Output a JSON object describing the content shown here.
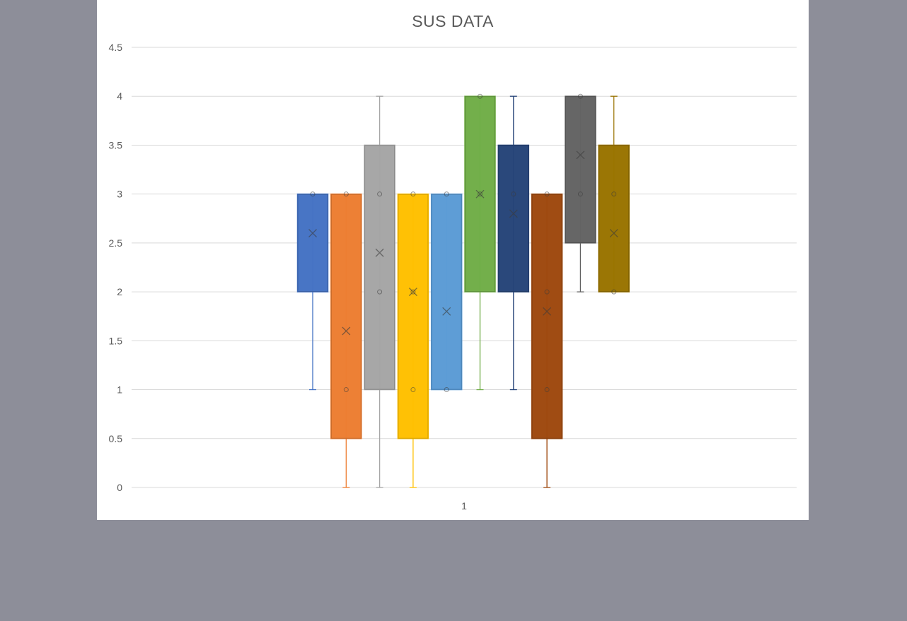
{
  "chart_data": {
    "type": "boxplot",
    "title": "SUS DATA",
    "xlabel": "",
    "ylabel": "",
    "ylim": [
      0,
      4.5
    ],
    "y_ticks": [
      "0",
      "0.5",
      "1",
      "1.5",
      "2",
      "2.5",
      "3",
      "3.5",
      "4",
      "4.5"
    ],
    "categories": [
      "1"
    ],
    "grid": true,
    "series": [
      {
        "color": "#4472c4",
        "whisker_low": 1,
        "q1": 2,
        "q3": 3,
        "whisker_high": 3,
        "mean": 2.6,
        "points": [
          3
        ]
      },
      {
        "color": "#ed7d31",
        "whisker_low": 0,
        "q1": 0.5,
        "q3": 3,
        "whisker_high": 3,
        "mean": 1.6,
        "points": [
          1,
          3
        ]
      },
      {
        "color": "#a5a5a5",
        "whisker_low": 0,
        "q1": 1,
        "q3": 3.5,
        "whisker_high": 4,
        "mean": 2.4,
        "points": [
          2,
          3
        ]
      },
      {
        "color": "#ffc000",
        "whisker_low": 0,
        "q1": 0.5,
        "q3": 3,
        "whisker_high": 3,
        "mean": 2,
        "points": [
          1,
          2,
          3
        ]
      },
      {
        "color": "#5b9bd5",
        "whisker_low": 1,
        "q1": 1,
        "q3": 3,
        "whisker_high": 3,
        "mean": 1.8,
        "points": [
          1,
          3
        ]
      },
      {
        "color": "#70ad47",
        "whisker_low": 1,
        "q1": 2,
        "q3": 4,
        "whisker_high": 4,
        "mean": 3,
        "points": [
          3,
          4
        ]
      },
      {
        "color": "#264478",
        "whisker_low": 1,
        "q1": 2,
        "q3": 3.5,
        "whisker_high": 4,
        "mean": 2.8,
        "points": [
          3
        ]
      },
      {
        "color": "#9e480e",
        "whisker_low": 0,
        "q1": 0.5,
        "q3": 3,
        "whisker_high": 3,
        "mean": 1.8,
        "points": [
          1,
          2,
          3
        ]
      },
      {
        "color": "#636363",
        "whisker_low": 2,
        "q1": 2.5,
        "q3": 4,
        "whisker_high": 4,
        "mean": 3.4,
        "points": [
          3,
          4
        ]
      },
      {
        "color": "#997300",
        "whisker_low": 2,
        "q1": 2,
        "q3": 3.5,
        "whisker_high": 4,
        "mean": 2.6,
        "points": [
          2,
          3
        ]
      }
    ]
  }
}
